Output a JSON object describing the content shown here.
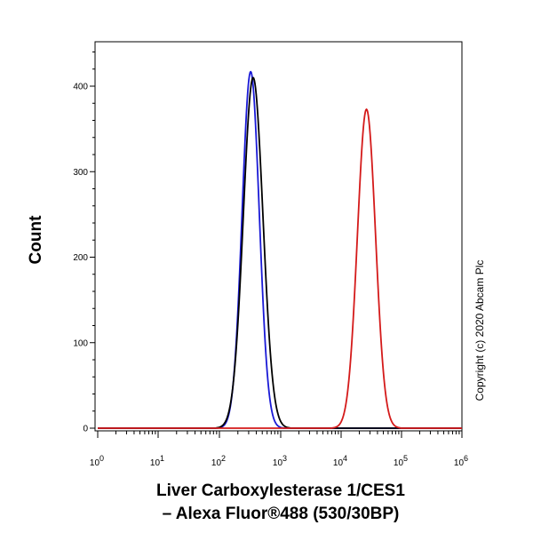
{
  "chart_data": {
    "type": "line",
    "title": "",
    "ylabel": "Count",
    "xlabel_lines": [
      "Liver Carboxylesterase  1/CES1",
      "– Alexa Fluor®488 (530/30BP)"
    ],
    "x_scale": "log",
    "x_decades": [
      "0",
      "1",
      "2",
      "3",
      "4",
      "5",
      "6"
    ],
    "x_tick_base": "10",
    "y_ticks": [
      0,
      100,
      200,
      300,
      400
    ],
    "ylim": [
      0,
      445
    ],
    "grid": false,
    "legend": "none",
    "series": [
      {
        "color": "#1a1ad6",
        "peak_log10": 2.51,
        "peak_count": 417,
        "width_log10": 0.14
      },
      {
        "color": "#000000",
        "peak_log10": 2.55,
        "peak_count": 410,
        "width_log10": 0.16
      },
      {
        "color": "#d41a1a",
        "peak_log10": 4.42,
        "peak_count": 373,
        "width_log10": 0.15
      }
    ],
    "annotation": "Copyright (c) 2020 Abcam Plc"
  }
}
